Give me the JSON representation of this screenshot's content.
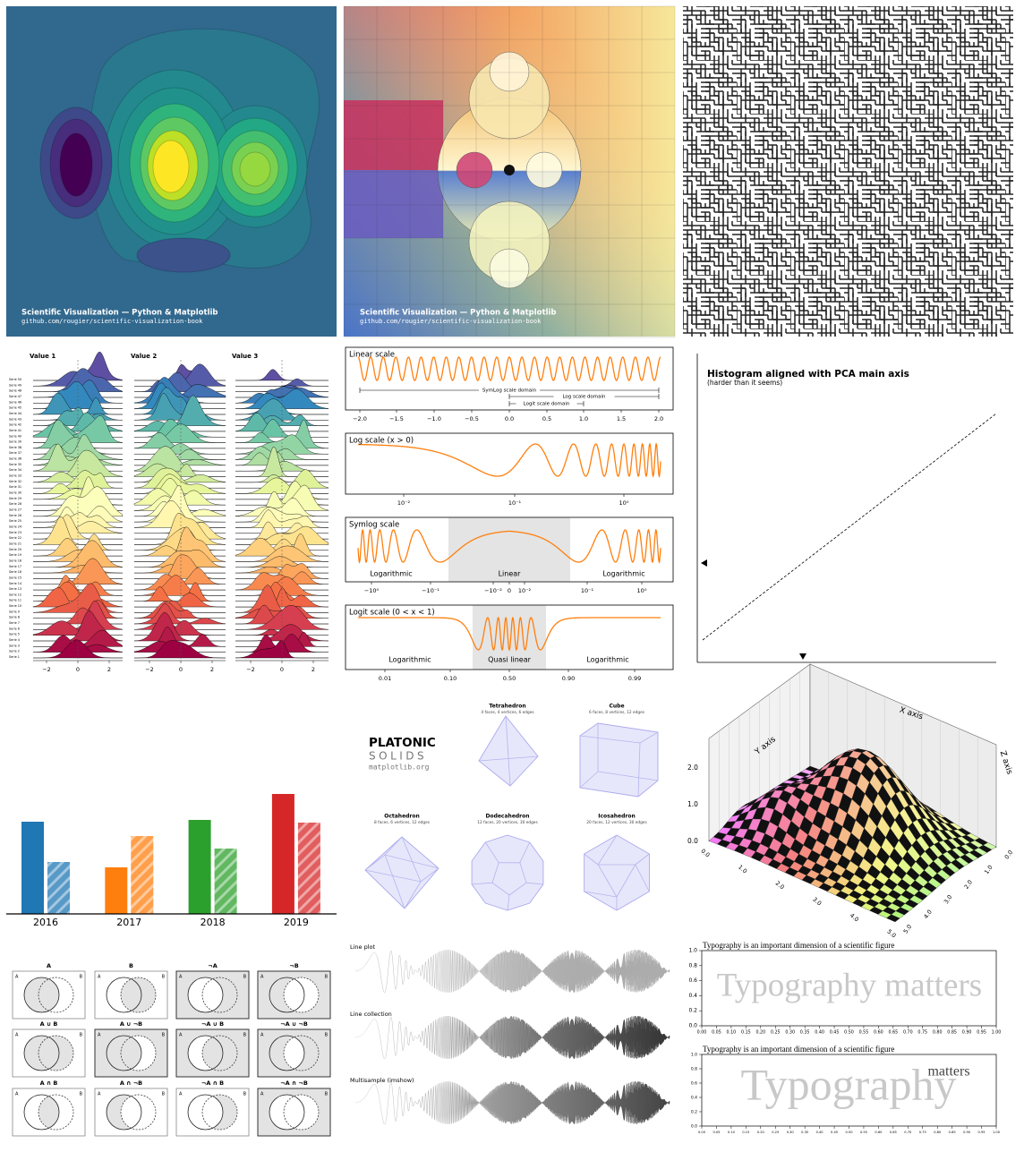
{
  "panels": {
    "contour": {
      "caption": "Scientific Visualization — Python & Matplotlib",
      "link": "github.com/rougier/scientific-visualization-book"
    },
    "domain_coloring": {
      "caption": "Scientific Visualization — Python & Matplotlib",
      "link": "github.com/rougier/scientific-visualization-book"
    },
    "ridgeline": {
      "headers": [
        "Value 1",
        "Value 2",
        "Value 3"
      ],
      "series": [
        "Serie 50",
        "Serie 49",
        "Serie 48",
        "Serie 47",
        "Serie 46",
        "Serie 45",
        "Serie 44",
        "Serie 43",
        "Serie 42",
        "Serie 41",
        "Serie 40",
        "Serie 39",
        "Serie 38",
        "Serie 37",
        "Serie 36",
        "Serie 35",
        "Serie 34",
        "Serie 33",
        "Serie 32",
        "Serie 31",
        "Serie 30",
        "Serie 29",
        "Serie 28",
        "Serie 27",
        "Serie 26",
        "Serie 25",
        "Serie 24",
        "Serie 23",
        "Serie 22",
        "Serie 21",
        "Serie 20",
        "Serie 19",
        "Serie 18",
        "Serie 17",
        "Serie 16",
        "Serie 15",
        "Serie 14",
        "Serie 13",
        "Serie 12",
        "Serie 11",
        "Serie 10",
        "Serie 9",
        "Serie 8",
        "Serie 7",
        "Serie 6",
        "Serie 5",
        "Serie 4",
        "Serie 3",
        "Serie 2",
        "Serie 1"
      ],
      "xticks": [
        "−2",
        "0",
        "2"
      ]
    },
    "scales": [
      {
        "title": "Linear scale",
        "ticks": [
          "−2.0",
          "−1.5",
          "−1.0",
          "−0.5",
          "0.0",
          "0.5",
          "1.0",
          "1.5",
          "2.0"
        ],
        "notes": [
          "SymLog scale domain",
          "Log scale domain",
          "Logit scale domain"
        ]
      },
      {
        "title": "Log scale (x > 0)",
        "ticks": [
          "10⁻²",
          "10⁻¹",
          "10⁰"
        ]
      },
      {
        "title": "Symlog scale",
        "ticks": [
          "−10⁰",
          "−10⁻¹",
          "−10⁻²",
          "0",
          "10⁻²",
          "10⁻¹",
          "10⁰"
        ],
        "notes": [
          "Logarithmic",
          "Linear",
          "Logarithmic"
        ]
      },
      {
        "title": "Logit scale (0 < x < 1)",
        "ticks": [
          "0.01",
          "0.10",
          "0.50",
          "0.90",
          "0.99"
        ],
        "notes": [
          "Logarithmic",
          "Quasi linear",
          "Logarithmic"
        ]
      }
    ],
    "pca": {
      "title": "Histogram aligned with PCA main axis",
      "subtitle": "(harder than it seems)"
    },
    "platonic": {
      "heading": [
        "PLATONIC",
        "SOLIDS",
        "matplotlib.org"
      ],
      "solids": [
        {
          "name": "Tetrahedron",
          "description": "4 faces, 4 vertices, 6 edges"
        },
        {
          "name": "Cube",
          "description": "6 faces, 8 vertices, 12 edges"
        },
        {
          "name": "Octahedron",
          "description": "8 faces, 6 vertices, 12 edges"
        },
        {
          "name": "Dodecahedron",
          "description": "12 faces, 20 vertices, 30 edges"
        },
        {
          "name": "Icosahedron",
          "description": "20 faces, 12 vertices, 30 edges"
        }
      ]
    },
    "surface": {
      "axis_labels": [
        "X axis",
        "Y axis",
        "Z axis"
      ],
      "zticks": [
        "0.0",
        "1.0",
        "2.0"
      ],
      "ticks": [
        "0.0",
        "1.0",
        "2.0",
        "3.0",
        "4.0",
        "5.0"
      ]
    },
    "venn": {
      "set_labels": [
        "A",
        "B"
      ],
      "titles": [
        "A",
        "B",
        "¬A",
        "¬B",
        "A ∪ B",
        "A ∪ ¬B",
        "¬A ∪ B",
        "¬A ∪ ¬B",
        "A ∩ B",
        "A ∩ ¬B",
        "¬A ∩ B",
        "¬A ∩ ¬B"
      ]
    },
    "antialiasing": {
      "labels": [
        "Line plot",
        "Line collection",
        "Multisample (imshow)"
      ]
    },
    "typography": {
      "title": "Typography is an important dimension of a scientific figure",
      "big": "Typography matters",
      "word1": "Typography",
      "word2": "matters",
      "yticks": [
        "0.0",
        "0.2",
        "0.4",
        "0.6",
        "0.8",
        "1.0"
      ],
      "xticks": [
        "0.00",
        "0.05",
        "0.10",
        "0.15",
        "0.20",
        "0.25",
        "0.30",
        "0.35",
        "0.40",
        "0.45",
        "0.50",
        "0.55",
        "0.60",
        "0.65",
        "0.70",
        "0.75",
        "0.80",
        "0.85",
        "0.90",
        "0.95",
        "1.00"
      ]
    }
  },
  "chart_data": {
    "type": "bar",
    "categories": [
      "2016",
      "2017",
      "2018",
      "2019"
    ],
    "colors": [
      "#1f77b4",
      "#ff7f0e",
      "#2ca02c",
      "#d62728"
    ],
    "series": [
      {
        "values": [
          10.3,
          5.2,
          10.5,
          13.4
        ],
        "hatch": false
      },
      {
        "values": [
          5.8,
          8.7,
          7.3,
          10.2
        ],
        "hatch": true
      }
    ]
  }
}
